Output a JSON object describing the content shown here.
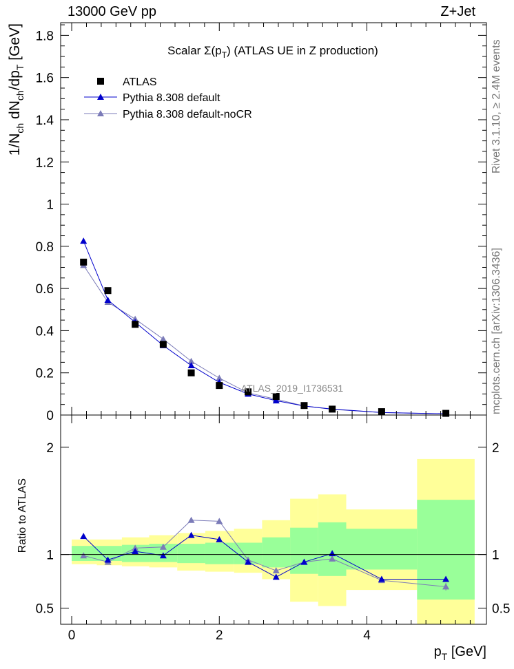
{
  "header": {
    "collision": "13000 GeV pp",
    "process": "Z+Jet"
  },
  "side_text": {
    "rivet": "Rivet 3.1.10, ≥ 2.4M events",
    "mcplots": "mcplots.cern.ch [arXiv:1306.3436]"
  },
  "chart_data": [
    {
      "type": "line",
      "title_prefix": "Scalar Σ(p",
      "title_sub": "T",
      "title_suffix": ") (ATLAS UE in Z production)",
      "watermark": "ATLAS_2019_I1736531",
      "ylabel": "1/N_ch dN_ch/dp_T [GeV]",
      "xlim": [
        -0.15,
        5.62
      ],
      "ylim": [
        0,
        1.86
      ],
      "yticks": [
        0,
        0.2,
        0.4,
        0.6,
        0.8,
        1,
        1.2,
        1.4,
        1.6,
        1.8
      ],
      "ytick_labels": [
        "0",
        "0.2",
        "0.4",
        "0.6",
        "0.8",
        "1",
        "1.2",
        "1.4",
        "1.6",
        "1.8"
      ],
      "legend": [
        "ATLAS",
        "Pythia 8.308 default",
        "Pythia 8.308 default-noCR"
      ],
      "legend_position": "top-left",
      "series": [
        {
          "name": "ATLAS",
          "color": "#000000",
          "marker": "square",
          "x": [
            0.16,
            0.49,
            0.86,
            1.24,
            1.62,
            2.0,
            2.39,
            2.77,
            3.15,
            3.53,
            4.2,
            5.07
          ],
          "y": [
            0.725,
            0.59,
            0.43,
            0.335,
            0.2,
            0.14,
            0.11,
            0.088,
            0.045,
            0.028,
            0.016,
            0.008
          ]
        },
        {
          "name": "Pythia 8.308 default",
          "color": "#0000cc",
          "marker": "triangle",
          "x": [
            0.16,
            0.49,
            0.86,
            1.24,
            1.62,
            2.0,
            2.39,
            2.77,
            3.15,
            3.53,
            4.2,
            5.07
          ],
          "y": [
            0.825,
            0.545,
            0.44,
            0.33,
            0.235,
            0.155,
            0.1,
            0.068,
            0.043,
            0.028,
            0.012,
            0.006
          ]
        },
        {
          "name": "Pythia 8.308 default-noCR",
          "color": "#7b7bb8",
          "marker": "triangle",
          "x": [
            0.16,
            0.49,
            0.86,
            1.24,
            1.62,
            2.0,
            2.39,
            2.77,
            3.15,
            3.53,
            4.2,
            5.07
          ],
          "y": [
            0.71,
            0.535,
            0.455,
            0.36,
            0.255,
            0.175,
            0.105,
            0.075,
            0.043,
            0.027,
            0.012,
            0.0055
          ]
        }
      ]
    },
    {
      "type": "line",
      "ylabel": "Ratio to ATLAS",
      "xlabel": "p_T [GeV]",
      "xlim": [
        -0.15,
        5.62
      ],
      "ylim": [
        0.35,
        2.3
      ],
      "xticks": [
        0,
        2,
        4
      ],
      "xtick_labels": [
        "0",
        "2",
        "4"
      ],
      "yticks": [
        0.5,
        1,
        2
      ],
      "ytick_labels": [
        "0.5",
        "1",
        "2"
      ],
      "bin_edges": [
        0.0,
        0.34,
        0.68,
        1.05,
        1.43,
        1.81,
        2.2,
        2.58,
        2.96,
        3.34,
        3.72,
        4.68,
        5.46
      ],
      "band_inner": [
        [
          0.94,
          1.08
        ],
        [
          0.94,
          1.08
        ],
        [
          0.93,
          1.09
        ],
        [
          0.93,
          1.1
        ],
        [
          0.92,
          1.1
        ],
        [
          0.91,
          1.11
        ],
        [
          0.91,
          1.11
        ],
        [
          0.88,
          1.16
        ],
        [
          0.82,
          1.25
        ],
        [
          0.8,
          1.3
        ],
        [
          0.86,
          1.24
        ],
        [
          0.58,
          1.51
        ]
      ],
      "band_outer": [
        [
          0.91,
          1.14
        ],
        [
          0.9,
          1.14
        ],
        [
          0.89,
          1.16
        ],
        [
          0.88,
          1.18
        ],
        [
          0.85,
          1.2
        ],
        [
          0.84,
          1.22
        ],
        [
          0.83,
          1.24
        ],
        [
          0.77,
          1.32
        ],
        [
          0.56,
          1.52
        ],
        [
          0.52,
          1.56
        ],
        [
          0.67,
          1.42
        ],
        [
          0.35,
          1.89
        ]
      ],
      "series": [
        {
          "name": "Pythia 8.308 default",
          "color": "#0000cc",
          "marker": "triangle",
          "x": [
            0.16,
            0.49,
            0.86,
            1.24,
            1.62,
            2.0,
            2.39,
            2.77,
            3.15,
            3.53,
            4.2,
            5.07
          ],
          "y": [
            1.17,
            0.95,
            1.03,
            0.99,
            1.18,
            1.14,
            0.93,
            0.79,
            0.93,
            1.01,
            0.77,
            0.77
          ]
        },
        {
          "name": "Pythia 8.308 default-noCR",
          "color": "#7b7bb8",
          "marker": "triangle",
          "x": [
            0.16,
            0.49,
            0.86,
            1.24,
            1.62,
            2.0,
            2.39,
            2.77,
            3.15,
            3.53,
            4.2,
            5.07
          ],
          "y": [
            0.99,
            0.93,
            1.06,
            1.07,
            1.32,
            1.31,
            0.95,
            0.85,
            0.93,
            0.96,
            0.76,
            0.7
          ]
        }
      ]
    }
  ]
}
